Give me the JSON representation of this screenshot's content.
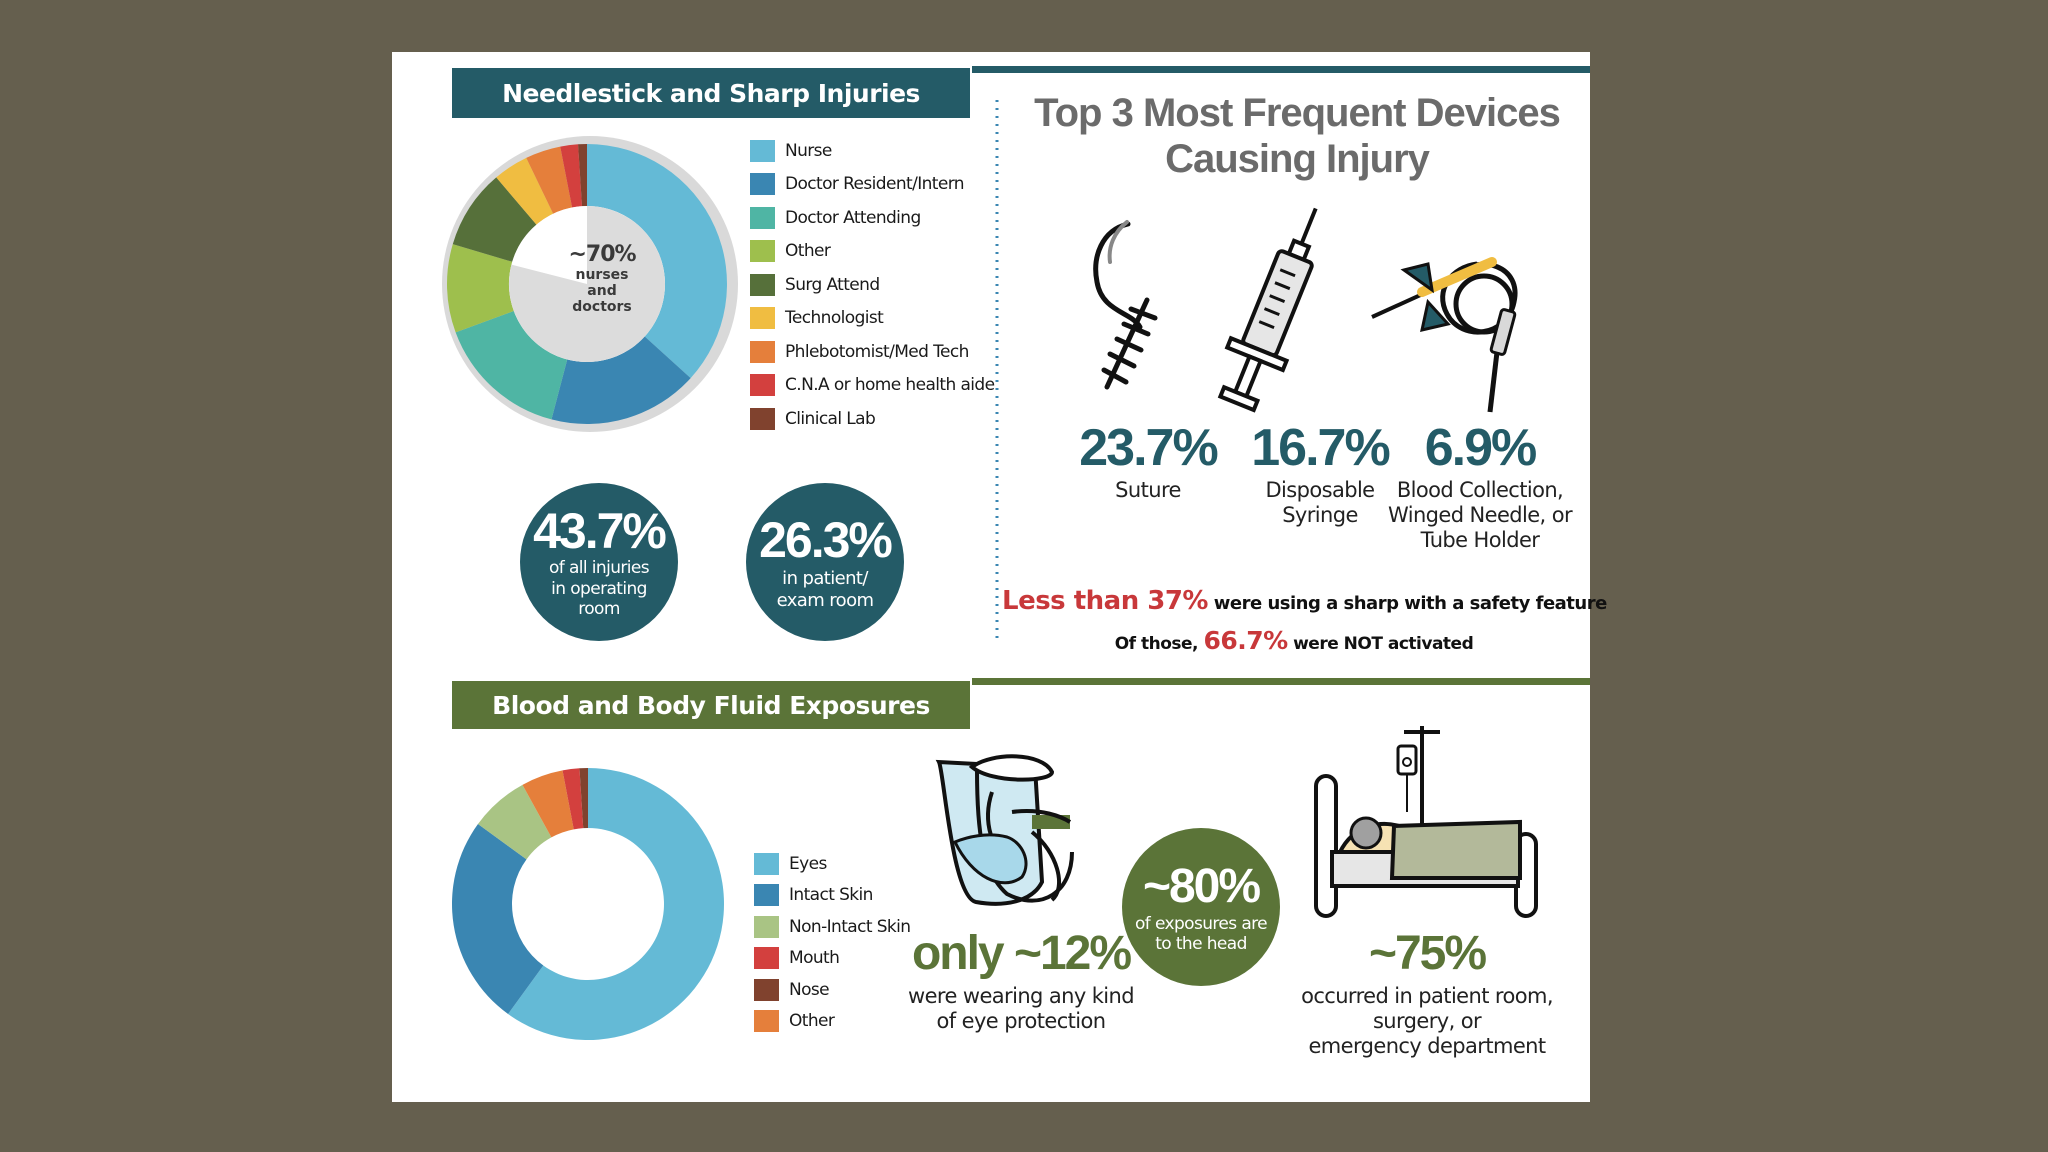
{
  "colors": {
    "teal_dark": "#245b67",
    "olive": "#5b7438",
    "nurse": "#64bad6",
    "resident": "#3a86b2",
    "attending": "#4fb5a4",
    "other": "#9ebf4d",
    "surg": "#56703a",
    "tech": "#f0bd41",
    "phleb": "#e57f3b",
    "cna": "#d3403e",
    "lab": "#80422e",
    "nonintact": "#a9c484",
    "red_text": "#c8383a"
  },
  "needlestick": {
    "section_title": "Needlestick and Sharp Injuries",
    "center_label": {
      "pct": "~70%",
      "l1": "nurses",
      "l2": "and",
      "l3": "doctors"
    },
    "stat_or": {
      "value": "43.7%",
      "l1": "of all injuries",
      "l2": "in operating",
      "l3": "room"
    },
    "stat_patient": {
      "value": "26.3%",
      "l1": "in patient/",
      "l2": "exam room"
    }
  },
  "devices": {
    "title_line1": "Top 3 Most Frequent Devices",
    "title_line2": "Causing Injury",
    "suture": {
      "icon": "suture-icon",
      "value": "23.7%",
      "l1": "Suture"
    },
    "syringe": {
      "icon": "syringe-icon",
      "value": "16.7%",
      "l1": "Disposable",
      "l2": "Syringe"
    },
    "winged": {
      "icon": "winged-needle-icon",
      "value": "6.9%",
      "l1": "Blood Collection,",
      "l2": "Winged Needle, or",
      "l3": "Tube Holder"
    },
    "safety": {
      "highlight": "Less than 37%",
      "rest": " were using a sharp with a safety feature"
    },
    "activated": {
      "pre": "Of those, ",
      "highlight": "66.7%",
      "mid": " were ",
      "bold": "NOT",
      "post": " activated"
    }
  },
  "exposures": {
    "section_title": "Blood and Body Fluid Exposures",
    "eye": {
      "icon": "face-shield-icon",
      "value": "only ~12%",
      "l1": "were wearing any kind",
      "l2": "of eye protection"
    },
    "head": {
      "value": "~80%",
      "l1": "of exposures are",
      "l2": "to the head"
    },
    "room": {
      "icon": "hospital-bed-icon",
      "value": "~75%",
      "l1": "occurred in patient room,",
      "l2": "surgery, or",
      "l3": "emergency department"
    }
  },
  "chart_data": [
    {
      "type": "pie",
      "style": "donut",
      "title": "Needlestick and Sharp Injuries",
      "categories": [
        "Nurse",
        "Doctor Resident/Intern",
        "Doctor Attending",
        "Other",
        "Surg Attend",
        "Technologist",
        "Phlebotomist/Med Tech",
        "C.N.A or home health aide",
        "Clinical Lab"
      ],
      "values": [
        36,
        17,
        15,
        10,
        9,
        4,
        4,
        2,
        1
      ],
      "colors": [
        "#64bad6",
        "#3a86b2",
        "#4fb5a4",
        "#9ebf4d",
        "#56703a",
        "#f0bd41",
        "#e57f3b",
        "#d3403e",
        "#80422e"
      ],
      "annotation": "~70% nurses and doctors",
      "legend": "right"
    },
    {
      "type": "pie",
      "style": "donut",
      "title": "Blood and Body Fluid Exposures",
      "categories": [
        "Eyes",
        "Intact Skin",
        "Non-Intact Skin",
        "Mouth",
        "Nose",
        "Other"
      ],
      "values": [
        60,
        25,
        7,
        2,
        1,
        5
      ],
      "colors": [
        "#64bad6",
        "#3a86b2",
        "#a9c484",
        "#d3403e",
        "#80422e",
        "#e57f3b"
      ],
      "order": [
        "Eyes",
        "Intact Skin",
        "Non-Intact Skin",
        "Other",
        "Mouth",
        "Nose"
      ],
      "legend": "right"
    }
  ]
}
